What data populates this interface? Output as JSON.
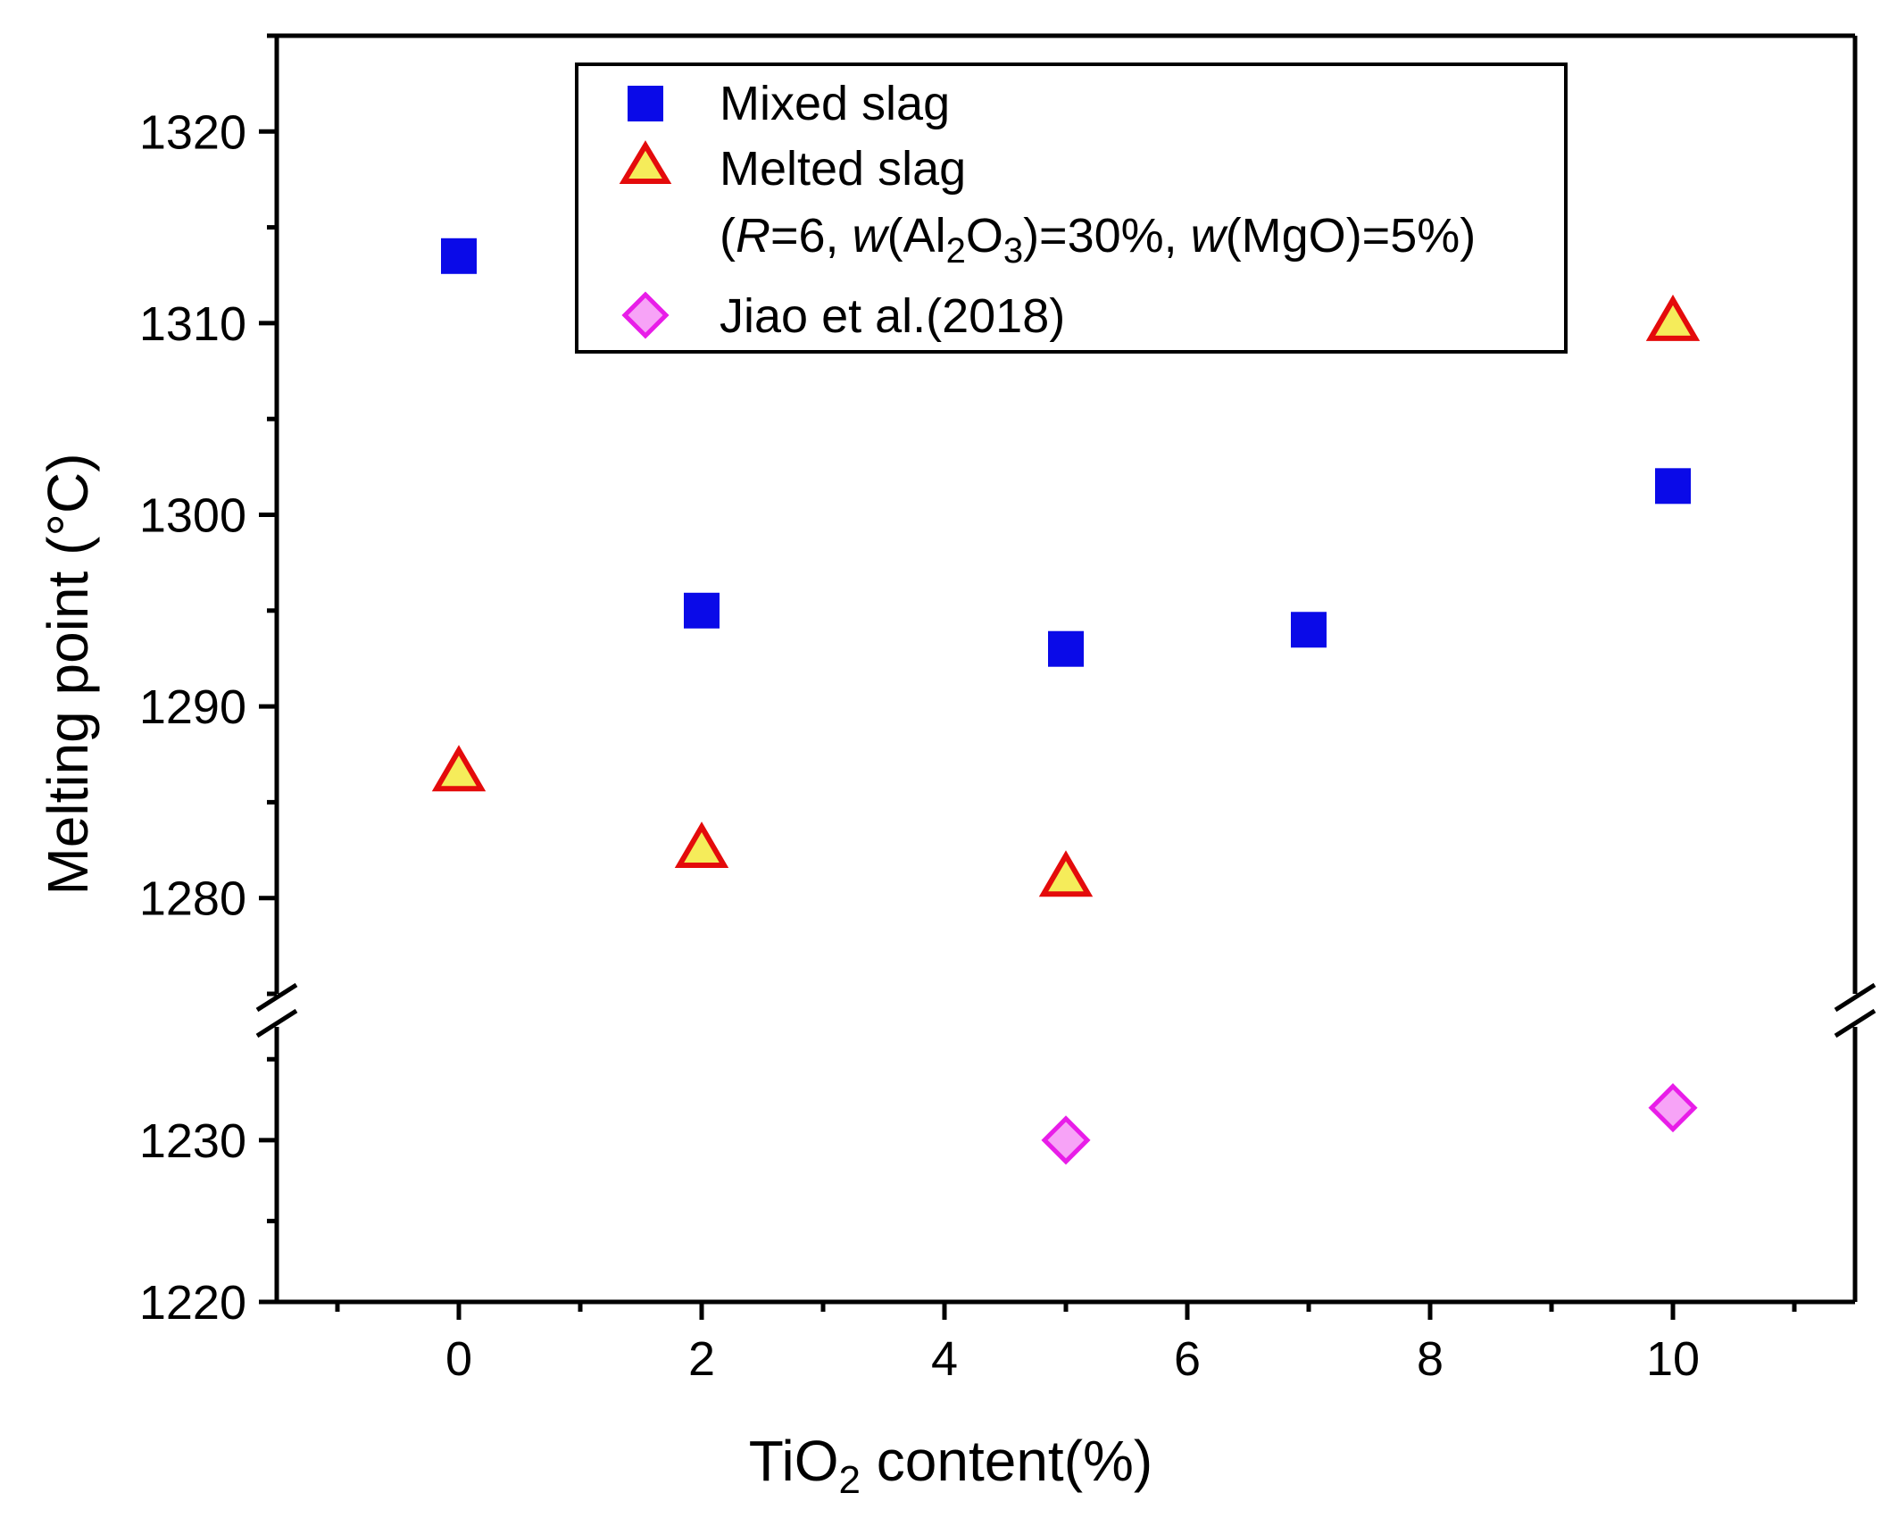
{
  "chart_data": {
    "type": "scatter",
    "xlabel": "TiO₂ content(%)",
    "xlabel_main": "TiO",
    "xlabel_sub": "2",
    "xlabel_rest": " content(%)",
    "ylabel": "Melting point (°C)",
    "xlim": [
      -1.5,
      11.5
    ],
    "x_ticks": [
      0,
      2,
      4,
      6,
      8,
      10
    ],
    "x_tick_labels": [
      "0",
      "2",
      "4",
      "6",
      "8",
      "10"
    ],
    "y_axis_break": true,
    "y_segments": [
      {
        "ylim": [
          1220,
          1237
        ],
        "ticks": [
          1220,
          1230
        ],
        "tick_labels": [
          "1220",
          "1230"
        ]
      },
      {
        "ylim": [
          1275,
          1325
        ],
        "ticks": [
          1280,
          1290,
          1300,
          1310,
          1320
        ],
        "tick_labels": [
          "1280",
          "1290",
          "1300",
          "1310",
          "1320"
        ]
      }
    ],
    "series": [
      {
        "name": "Mixed slag",
        "marker": "square",
        "color": "#0a0ae8",
        "edge": "#0a0ae8",
        "x": [
          0,
          2,
          5,
          7,
          10
        ],
        "y": [
          1313.5,
          1295,
          1293,
          1294,
          1301.5
        ]
      },
      {
        "name": "Melted slag",
        "marker": "triangle",
        "color": "#f5ec5a",
        "edge": "#e40b0b",
        "x": [
          0,
          2,
          5,
          10
        ],
        "y": [
          1286.5,
          1282.5,
          1281,
          1310
        ]
      },
      {
        "name": "Jiao et al.(2018)",
        "marker": "diamond",
        "color": "#f7a3f7",
        "edge": "#e81de8",
        "x": [
          5,
          10
        ],
        "y": [
          1230,
          1232
        ]
      }
    ],
    "legend": {
      "position": "top-center",
      "items": [
        "Mixed slag",
        "Melted slag",
        "Jiao et al.(2018)"
      ],
      "note_parts": [
        "(",
        "R",
        "=6, ",
        "w",
        "(Al",
        "2",
        "O",
        "3",
        ")=30%, ",
        "w",
        "(MgO)=5%)"
      ]
    }
  }
}
